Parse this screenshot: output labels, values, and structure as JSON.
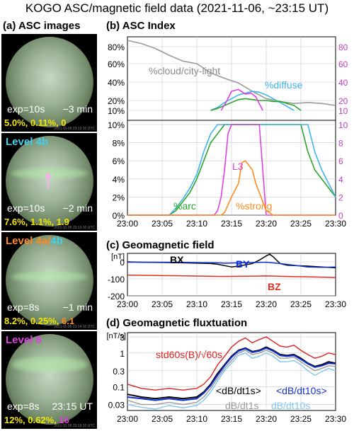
{
  "title": "KOGO ASC/magnetic field data (2021-11-06, ~23:15 UT)",
  "panels": {
    "a": "(a) ASC images",
    "b": "(b) ASC Index",
    "c": "(c) Geomagnetic field",
    "d": "(d) Geomagnetic fluxtuation"
  },
  "images": [
    {
      "level": "",
      "exp": "exp=10s",
      "rel": "−3 min",
      "stats": [
        "5.0%,",
        "0.11%,",
        "0"
      ],
      "stats_colors": [
        "#f2e600",
        "#f2e600",
        "#f2e600"
      ],
      "tiny": "2021-11-06 23:12:10 UTC"
    },
    {
      "level": "Level 4b",
      "level_color": "#40d0f0",
      "exp": "exp=10s",
      "rel": "−2 min",
      "stats": [
        "7.6%,",
        "1.1%,",
        "1.9"
      ],
      "stats_colors": [
        "#f2e600",
        "#f2e600",
        "#f2e600"
      ],
      "tiny": "2021-11-06 23:13:10 UTC"
    },
    {
      "level": "Level 4a/4b",
      "level_color": "#ff8a1e",
      "exp": "exp=8s",
      "rel": "−1 min",
      "stats": [
        "8.2%,",
        "0.25%,",
        "6.1"
      ],
      "stats_colors": [
        "#f2e600",
        "#f2e600",
        "#ff8a1e"
      ],
      "tiny": "2021-11-06 23:14:10 UTC"
    },
    {
      "level": "Level 6",
      "level_color": "#e040e0",
      "exp": "exp=8s",
      "rel": "23:15 UT",
      "stats": [
        "12%,",
        "0.62%,",
        "16"
      ],
      "stats_colors": [
        "#f2e600",
        "#f2e600",
        "#e040e0"
      ],
      "tiny": "2021-11-06 23:15:10 UTC"
    }
  ],
  "chart_data": [
    {
      "type": "line",
      "title": "(b) ASC Index",
      "x_ticks": [
        "23:00",
        "23:05",
        "23:10",
        "23:15",
        "23:20",
        "23:25",
        "23:30"
      ],
      "top": {
        "yticks_left": [
          "80%",
          "60%",
          "40%",
          "20%",
          "10%"
        ],
        "yticks_right": [
          "80",
          "60",
          "40",
          "20",
          "10"
        ],
        "series": [
          {
            "name": "%cloud/city-light",
            "color": "#9a9a9a",
            "x": [
              0,
              2,
              4,
              6,
              8,
              10,
              12,
              14,
              16,
              18,
              20,
              22,
              24,
              26,
              28,
              30
            ],
            "y": [
              90,
              85,
              78,
              70,
              63,
              60,
              50,
              44,
              39,
              30,
              22,
              19,
              17,
              18,
              17,
              15
            ]
          },
          {
            "name": "%diffuse",
            "color": "#40b4ec",
            "x": [
              12,
              13,
              14,
              15,
              16,
              17,
              18,
              19,
              20,
              21,
              22,
              23,
              24
            ],
            "y": [
              10,
              13,
              18,
              22,
              26,
              28,
              30,
              29,
              26,
              22,
              18,
              14,
              10
            ]
          },
          {
            "name": "%arc",
            "color": "#2aa52a",
            "x": [
              12,
              13,
              14,
              15,
              16,
              17,
              18,
              19,
              20,
              21,
              22,
              23,
              24,
              25
            ],
            "y": [
              10,
              12,
              15,
              18,
              21,
              22,
              21,
              20,
              20,
              19,
              19,
              17,
              15,
              10
            ]
          },
          {
            "name": "L3",
            "color": "#e040e0",
            "x": [
              13.5,
              14.2,
              15,
              16,
              17,
              17.8,
              18.5,
              19.5
            ],
            "y": [
              10,
              18,
              30,
              32,
              27,
              28,
              24,
              10
            ]
          }
        ]
      },
      "bottom": {
        "yticks_left": [
          "10%",
          "8%",
          "6%",
          "4%",
          "2%",
          "0%"
        ],
        "yticks_right": [
          "10",
          "8",
          "6",
          "4",
          "2",
          "0"
        ],
        "series": [
          {
            "name": "%arc",
            "color": "#2aa52a",
            "x": [
              0,
              6,
              7,
              8,
              9,
              10,
              11,
              12,
              13,
              14,
              15,
              16,
              17,
              18,
              19,
              20,
              21,
              22,
              23,
              24,
              25,
              26,
              27,
              28,
              29,
              30
            ],
            "y": [
              0,
              0,
              0.5,
              1.5,
              2.5,
              4,
              6,
              8,
              9,
              10,
              10,
              10,
              10,
              10,
              10,
              10,
              10,
              10,
              10,
              10,
              10,
              7,
              5,
              4,
              3,
              2
            ]
          },
          {
            "name": "%diffuse",
            "color": "#40b4ec",
            "x": [
              0,
              6,
              7,
              8,
              9,
              10,
              11,
              12,
              13,
              14,
              15,
              16,
              17,
              18,
              19,
              20,
              21,
              22,
              23,
              24,
              25,
              26,
              27,
              28,
              29,
              30
            ],
            "y": [
              0,
              0,
              0.8,
              1.8,
              3,
              4.5,
              7,
              9,
              10,
              10,
              10,
              10,
              10,
              10,
              10,
              10,
              10,
              10,
              10,
              10,
              10,
              10,
              7,
              5,
              3.5,
              2
            ]
          },
          {
            "name": "L3",
            "color": "#e040e0",
            "x": [
              0,
              12.5,
              13,
              13.5,
              14,
              14.5,
              15,
              16,
              17,
              18,
              19,
              20,
              21,
              30
            ],
            "y": [
              0,
              0,
              0.5,
              2,
              5,
              9,
              10,
              10,
              10,
              10,
              10,
              0,
              0,
              0
            ]
          },
          {
            "name": "%strong",
            "color": "#ff8a1e",
            "x": [
              0,
              13.5,
              14,
              15,
              16,
              16.5,
              17,
              18,
              18.5,
              19,
              20,
              21,
              30
            ],
            "y": [
              0,
              0,
              0.3,
              2,
              3.5,
              5.8,
              6,
              5,
              3.5,
              2.5,
              0.5,
              0,
              0
            ]
          }
        ]
      }
    },
    {
      "type": "line",
      "title": "(c) Geomagnetic field",
      "ylabel": "[nT]",
      "ylim": [
        -200,
        50
      ],
      "yticks": [
        "0",
        "-100",
        "-200"
      ],
      "x_ticks": [
        "23:00",
        "23:05",
        "23:10",
        "23:15",
        "23:20",
        "23:25",
        "23:30"
      ],
      "series": [
        {
          "name": "BX",
          "color": "#000000",
          "x": [
            0,
            2,
            4,
            6,
            8,
            10,
            12,
            13,
            14,
            15,
            16,
            17,
            18,
            19,
            20,
            20.5,
            21,
            22,
            23,
            24,
            26,
            28,
            30
          ],
          "y": [
            0,
            -2,
            -3,
            -4,
            -6,
            -8,
            -10,
            -14,
            -22,
            -30,
            -25,
            -18,
            -10,
            10,
            35,
            45,
            30,
            -10,
            -20,
            -22,
            -25,
            -30,
            -35
          ]
        },
        {
          "name": "BY",
          "color": "#1030d0",
          "x": [
            0,
            4,
            8,
            12,
            13,
            14,
            16,
            18,
            20,
            22,
            24,
            26,
            28,
            30
          ],
          "y": [
            -2,
            -2,
            -3,
            -5,
            -6,
            -8,
            -6,
            -4,
            -2,
            -10,
            -20,
            -30,
            -32,
            -30
          ]
        },
        {
          "name": "BZ",
          "color": "#e03020",
          "x": [
            0,
            4,
            8,
            12,
            14,
            16,
            18,
            20,
            22,
            24,
            26,
            28,
            30
          ],
          "y": [
            -78,
            -80,
            -82,
            -85,
            -86,
            -85,
            -84,
            -83,
            -85,
            -87,
            -88,
            -90,
            -92
          ]
        }
      ]
    },
    {
      "type": "line",
      "title": "(d) Geomagnetic fluxtuation",
      "ylabel": "[nT/s]",
      "yscale": "log",
      "yticks": [
        "3",
        "1",
        "0.3",
        "0.1",
        "0.03"
      ],
      "x_ticks": [
        "23:00",
        "23:05",
        "23:10",
        "23:15",
        "23:20",
        "23:25",
        "23:30"
      ],
      "series": [
        {
          "name": "std60s(B)/√60s",
          "color": "#e02020",
          "x": [
            0,
            2,
            4,
            6,
            8,
            10,
            11,
            12,
            13,
            14,
            15,
            16,
            17,
            18,
            19,
            20,
            21,
            22,
            23,
            24,
            25,
            26,
            27,
            28,
            29,
            30
          ],
          "y": [
            0.12,
            0.09,
            0.08,
            0.09,
            0.08,
            0.09,
            0.12,
            0.2,
            0.45,
            0.8,
            1.5,
            2.2,
            2.8,
            2.0,
            2.5,
            3.0,
            2.2,
            1.6,
            1.5,
            1.7,
            1.2,
            0.9,
            0.7,
            0.8,
            1.0,
            0.9
          ]
        },
        {
          "name": "<dB/dt1s>",
          "color": "#000000",
          "x": [
            0,
            2,
            4,
            6,
            8,
            10,
            11,
            12,
            13,
            14,
            15,
            16,
            17,
            18,
            19,
            20,
            21,
            22,
            23,
            24,
            25,
            26,
            27,
            28,
            29,
            30
          ],
          "y": [
            0.06,
            0.05,
            0.045,
            0.05,
            0.045,
            0.05,
            0.07,
            0.12,
            0.25,
            0.45,
            0.8,
            1.2,
            1.4,
            1.1,
            1.2,
            1.5,
            1.2,
            0.9,
            0.85,
            0.9,
            0.7,
            0.5,
            0.4,
            0.45,
            0.55,
            0.5
          ]
        },
        {
          "name": "<dB/dt10s>",
          "color": "#1030d0",
          "x": [
            0,
            2,
            4,
            6,
            8,
            10,
            11,
            12,
            13,
            14,
            15,
            16,
            17,
            18,
            19,
            20,
            21,
            22,
            23,
            24,
            25,
            26,
            27,
            28,
            29,
            30
          ],
          "y": [
            0.05,
            0.045,
            0.04,
            0.045,
            0.04,
            0.045,
            0.065,
            0.11,
            0.22,
            0.42,
            0.75,
            1.15,
            1.35,
            1.05,
            1.15,
            1.4,
            1.15,
            0.85,
            0.8,
            0.85,
            0.65,
            0.48,
            0.38,
            0.42,
            0.5,
            0.48
          ]
        },
        {
          "name": "dB/dt1s",
          "color": "#9a9a9a",
          "x": [
            0,
            2,
            4,
            6,
            8,
            10,
            11,
            12,
            13,
            14,
            15,
            16,
            17,
            18,
            19,
            20,
            21,
            22,
            23,
            24,
            25,
            26,
            27,
            28,
            29,
            30
          ],
          "y": [
            0.04,
            0.03,
            0.03,
            0.035,
            0.03,
            0.035,
            0.05,
            0.09,
            0.18,
            0.35,
            0.6,
            1.0,
            1.2,
            0.9,
            1.0,
            1.2,
            1.0,
            0.7,
            0.7,
            0.75,
            0.55,
            0.4,
            0.3,
            0.35,
            0.42,
            0.4
          ]
        },
        {
          "name": "dB/dt10s",
          "color": "#7ec8ee",
          "x": [
            0,
            2,
            4,
            6,
            8,
            10,
            11,
            12,
            13,
            14,
            15,
            16,
            17,
            18,
            19,
            20,
            21,
            22,
            23,
            24,
            25,
            26,
            27,
            28,
            29,
            30
          ],
          "y": [
            0.03,
            0.025,
            0.022,
            0.028,
            0.024,
            0.028,
            0.04,
            0.07,
            0.15,
            0.3,
            0.5,
            0.85,
            1.0,
            0.7,
            0.8,
            1.0,
            0.8,
            0.55,
            0.55,
            0.6,
            0.45,
            0.3,
            0.22,
            0.28,
            0.35,
            0.3
          ]
        }
      ]
    }
  ]
}
